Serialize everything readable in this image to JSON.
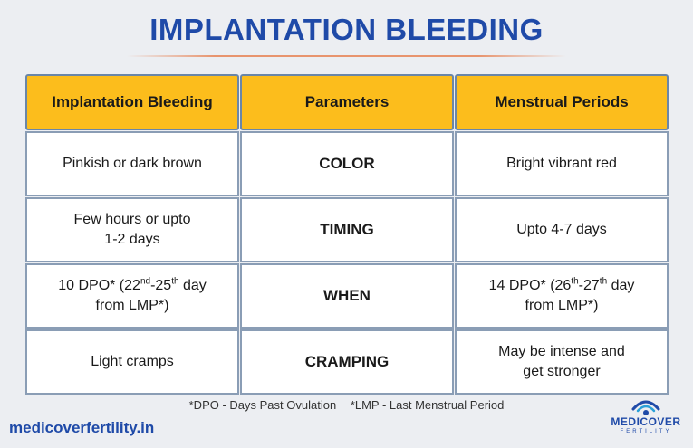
{
  "title": "IMPLANTATION BLEEDING",
  "headers": [
    "Implantation Bleeding",
    "Parameters",
    "Menstrual Periods"
  ],
  "rows": [
    {
      "implantation": "Pinkish or dark brown",
      "parameter": "COLOR",
      "menstrual": "Bright vibrant red"
    },
    {
      "implantation_line1": "Few hours or upto",
      "implantation_line2": "1-2 days",
      "parameter": "TIMING",
      "menstrual": "Upto 4-7 days"
    },
    {
      "implantation_pre": "10 DPO* (22",
      "implantation_sup1": "nd",
      "implantation_mid": "-25",
      "implantation_sup2": "th",
      "implantation_post": " day",
      "implantation_line2": "from LMP*)",
      "parameter": "WHEN",
      "menstrual_pre": "14 DPO* (26",
      "menstrual_sup1": "th",
      "menstrual_mid": "-27",
      "menstrual_sup2": "th",
      "menstrual_post": " day",
      "menstrual_line2": "from LMP*)"
    },
    {
      "implantation": "Light cramps",
      "parameter": "CRAMPING",
      "menstrual_line1": "May be intense and",
      "menstrual_line2": "get stronger"
    }
  ],
  "footnotes": [
    "*DPO - Days Past Ovulation",
    "*LMP - Last Menstrual Period"
  ],
  "website": "medicoverfertility.in",
  "logo": {
    "name": "MEDICOVER",
    "sub": "FERTILITY",
    "icon": "medicover-logo-icon"
  },
  "colors": {
    "title": "#1f4aa8",
    "header_bg": "#fcbd1c",
    "border": "#8a9db5",
    "background": "#eceef2"
  }
}
